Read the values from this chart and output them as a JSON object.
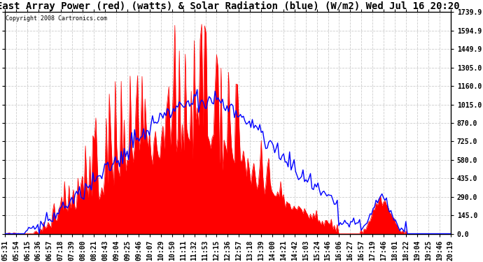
{
  "title": "East Array Power (red) (watts) & Solar Radiation (blue) (W/m2) Wed Jul 16 20:20",
  "copyright": "Copyright 2008 Cartronics.com",
  "ytick_labels": [
    "0.0",
    "145.0",
    "290.0",
    "435.0",
    "580.0",
    "725.0",
    "870.0",
    "1015.0",
    "1160.0",
    "1305.0",
    "1449.9",
    "1594.9",
    "1739.9"
  ],
  "ytick_vals": [
    0.0,
    145.0,
    290.0,
    435.0,
    580.0,
    725.0,
    870.0,
    1015.0,
    1160.0,
    1305.0,
    1449.9,
    1594.9,
    1739.9
  ],
  "x_tick_labels": [
    "05:31",
    "05:54",
    "06:15",
    "06:36",
    "06:57",
    "07:18",
    "07:39",
    "08:00",
    "08:21",
    "08:43",
    "09:04",
    "09:25",
    "09:46",
    "10:07",
    "10:29",
    "10:50",
    "11:11",
    "11:32",
    "11:53",
    "12:15",
    "12:36",
    "12:57",
    "13:18",
    "13:39",
    "14:00",
    "14:21",
    "14:42",
    "15:03",
    "15:24",
    "15:46",
    "16:06",
    "16:27",
    "16:57",
    "17:19",
    "17:46",
    "18:01",
    "18:22",
    "19:04",
    "19:25",
    "19:46",
    "20:19"
  ],
  "bg_color": "#ffffff",
  "red_color": "#ff0000",
  "blue_color": "#0000ff",
  "grid_color": "#cccccc",
  "title_fontsize": 10,
  "tick_fontsize": 7,
  "ymax": 1739.9,
  "ymin": 0.0,
  "figwidth": 6.9,
  "figheight": 3.75,
  "dpi": 100
}
